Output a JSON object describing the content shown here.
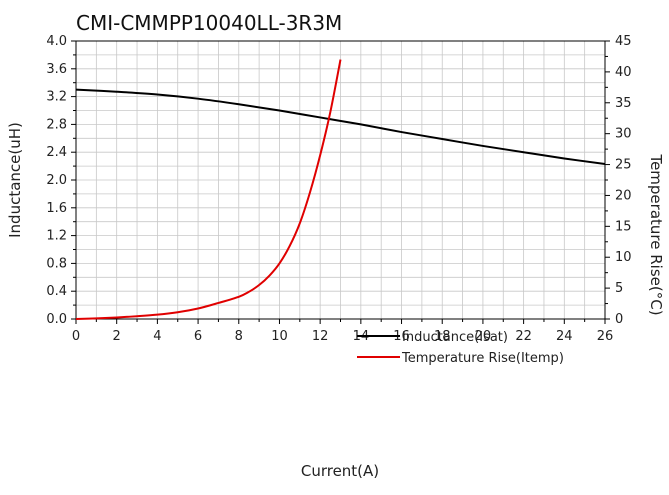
{
  "chart_data": {
    "type": "line",
    "title": "CMI-CMMPP10040LL-3R3M",
    "xlabel": "Current(A)",
    "ylabel": "Inductance(uH)",
    "y2label": "Temperature Rise(°C)",
    "xlim": [
      0,
      26
    ],
    "ylim": [
      0,
      4.0
    ],
    "y2lim": [
      0,
      45
    ],
    "x_ticks": [
      0,
      2,
      4,
      6,
      8,
      10,
      12,
      14,
      16,
      18,
      20,
      22,
      24,
      26
    ],
    "y_ticks": [
      "0.0",
      "0.4",
      "0.8",
      "1.2",
      "1.6",
      "2.0",
      "2.4",
      "2.8",
      "3.2",
      "3.6",
      "4.0"
    ],
    "y2_ticks": [
      0,
      5,
      10,
      15,
      20,
      25,
      30,
      35,
      40,
      45
    ],
    "grid": true,
    "legend_position": "bottom-right",
    "series": [
      {
        "name": "Inductance(Isat)",
        "axis": "left",
        "color": "#000000",
        "x": [
          0,
          2,
          4,
          6,
          8,
          10,
          12,
          14,
          16,
          18,
          20,
          22,
          24,
          26
        ],
        "y": [
          3.3,
          3.27,
          3.23,
          3.17,
          3.09,
          3.0,
          2.9,
          2.8,
          2.69,
          2.59,
          2.49,
          2.4,
          2.31,
          2.23
        ]
      },
      {
        "name": "Temperature Rise(Itemp)",
        "axis": "right",
        "color": "#e00000",
        "x": [
          0,
          1,
          2,
          3,
          4,
          5,
          6,
          7,
          8,
          8.5,
          9,
          9.5,
          10,
          10.5,
          11,
          11.5,
          12,
          12.5,
          13
        ],
        "y": [
          0,
          0.1,
          0.25,
          0.45,
          0.7,
          1.1,
          1.7,
          2.6,
          3.6,
          4.4,
          5.5,
          7.0,
          9.0,
          11.8,
          15.5,
          20.5,
          26.5,
          33.5,
          42
        ]
      }
    ]
  }
}
